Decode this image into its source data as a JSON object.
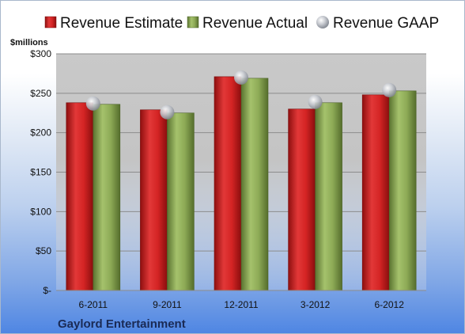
{
  "chart_data": {
    "type": "bar",
    "unit_label": "$millions",
    "company": "Gaylord Entertainment",
    "categories": [
      "6-2011",
      "9-2011",
      "12-2011",
      "3-2012",
      "6-2012"
    ],
    "series": [
      {
        "name": "Revenue Estimate",
        "kind": "bar",
        "color": "#d42a2a",
        "values": [
          238,
          229,
          271,
          230,
          248
        ]
      },
      {
        "name": "Revenue Actual",
        "kind": "bar",
        "color": "#8fae5a",
        "values": [
          236,
          225,
          269,
          238,
          253
        ]
      },
      {
        "name": "Revenue GAAP",
        "kind": "marker",
        "color": "#b8bcc4",
        "values": [
          237,
          226,
          270,
          239,
          254
        ]
      }
    ],
    "ylim": [
      0,
      300
    ],
    "yticks": [
      0,
      50,
      100,
      150,
      200,
      250,
      300
    ],
    "ytick_labels": [
      "$-",
      "$50",
      "$100",
      "$150",
      "$200",
      "$250",
      "$300"
    ],
    "grid": true,
    "legend_position": "top"
  }
}
